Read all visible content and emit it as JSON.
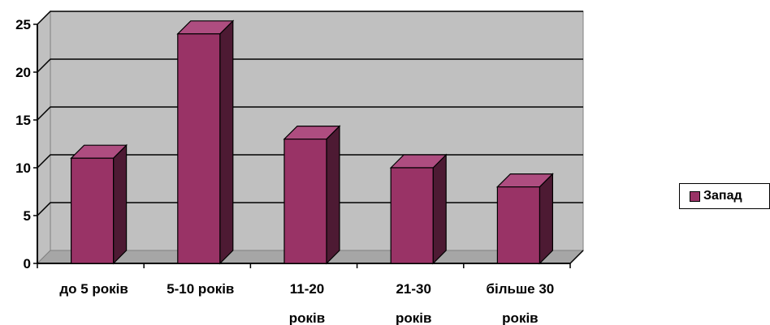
{
  "chart_data": {
    "type": "bar",
    "title": "",
    "xlabel": "",
    "ylabel": "",
    "categories": [
      [
        "до 5 років"
      ],
      [
        "5-10 років"
      ],
      [
        "11-20",
        "років"
      ],
      [
        "21-30",
        "років"
      ],
      [
        "більше 30",
        "років"
      ]
    ],
    "series": [
      {
        "name": "Запад",
        "values": [
          11,
          24,
          13,
          10,
          8
        ]
      }
    ],
    "ylim": [
      0,
      25
    ],
    "yticks": [
      "0",
      "5",
      "10",
      "15",
      "20",
      "25"
    ],
    "grid": true,
    "legend_position": "right",
    "colors": {
      "bar_front": "#993366",
      "bar_side": "#4d1a33",
      "bar_top": "#ae4d80",
      "wall": "#c0c0c0",
      "floor": "#a6a6a6"
    }
  }
}
